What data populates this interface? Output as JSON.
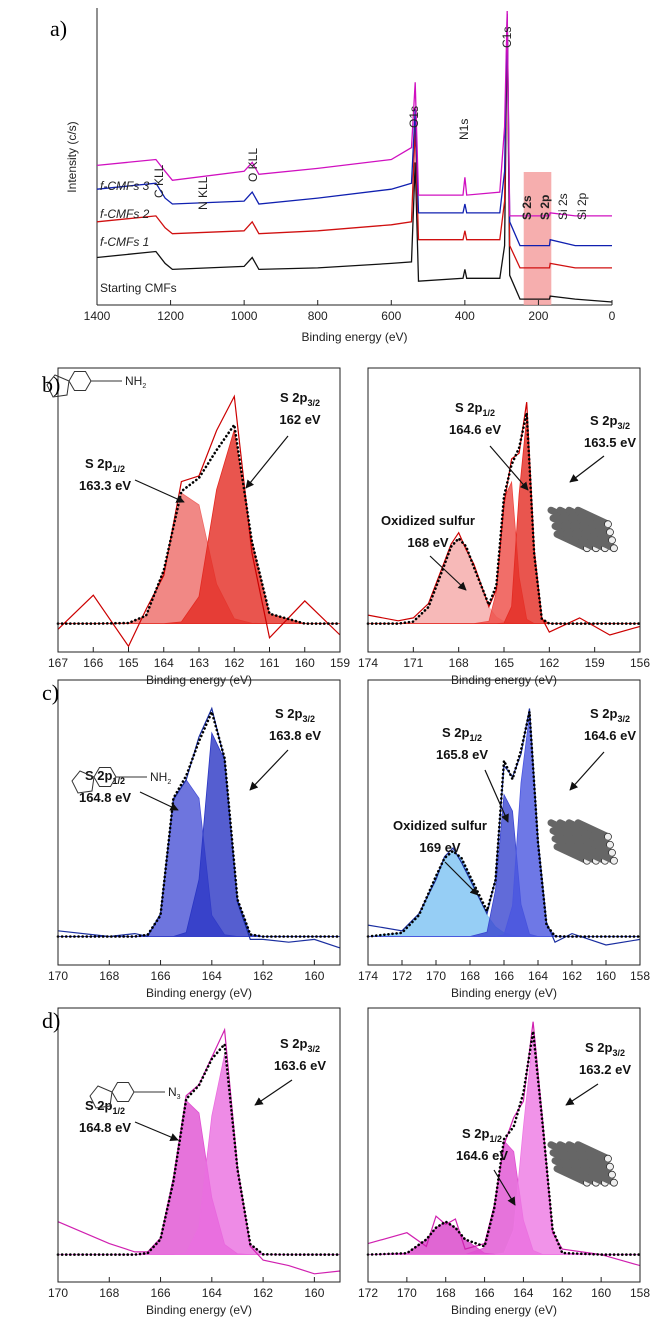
{
  "chart_data": [
    {
      "type": "survey",
      "panel_label": "a)",
      "x_label": "Binding energy (eV)",
      "y_label": "Intensity (c/s)",
      "xlim": [
        1400,
        0
      ],
      "xticks": [
        1400,
        1200,
        1000,
        800,
        600,
        400,
        200,
        0
      ],
      "ylim": [
        0,
        100
      ],
      "highlight_range": [
        240,
        165
      ],
      "highlight_color": "#f4a0a0",
      "x": [
        1400,
        1240,
        1215,
        1195,
        1000,
        978,
        960,
        800,
        600,
        545,
        535,
        526,
        405,
        400,
        395,
        305,
        292,
        285,
        278,
        250,
        170,
        168,
        100,
        0
      ],
      "series": [
        {
          "name": "Starting CMFs",
          "color": "#111111",
          "values": [
            16,
            18,
            14,
            12,
            13,
            16,
            12,
            12.5,
            14,
            14.5,
            48,
            8,
            9,
            12,
            9,
            9,
            20,
            96,
            10,
            2,
            2,
            3,
            2,
            1
          ]
        },
        {
          "name": "f-CMFs 1",
          "color": "#d01010",
          "values": [
            28,
            30,
            26,
            24,
            25,
            28,
            24,
            25,
            27,
            28,
            60,
            22,
            22,
            25,
            22,
            22,
            35,
            97,
            20,
            12.5,
            12.5,
            14,
            12.5,
            12.5
          ]
        },
        {
          "name": "f-CMFs 2",
          "color": "#1020b0",
          "values": [
            39,
            41,
            36,
            34,
            35,
            38,
            34,
            36,
            39,
            41,
            66,
            31,
            31,
            34,
            31,
            31,
            45,
            98,
            28,
            20,
            20,
            22,
            20,
            20
          ]
        },
        {
          "name": "f-CMFs 3",
          "color": "#d010c0",
          "values": [
            47,
            49,
            45,
            42,
            45,
            48,
            44,
            46,
            49,
            53,
            75,
            37,
            37,
            43,
            37,
            38,
            60,
            99,
            30,
            30,
            30,
            31,
            30,
            30
          ]
        }
      ],
      "peak_labels": [
        {
          "text": "C KLL",
          "color": "#111111"
        },
        {
          "text": "N KLL",
          "color": "#111111"
        },
        {
          "text": "O KLL",
          "color": "#111111"
        },
        {
          "text": "O1s",
          "color": "#111111"
        },
        {
          "text": "N1s",
          "color": "#111111"
        },
        {
          "text": "C1s",
          "color": "#111111"
        },
        {
          "text": "S 2s",
          "color": "#d01010"
        },
        {
          "text": "S 2p",
          "color": "#d01010"
        },
        {
          "text": "Si 2s",
          "color": "#111111"
        },
        {
          "text": "Si 2p",
          "color": "#111111"
        }
      ]
    },
    {
      "type": "xps",
      "panel_label": "b)",
      "x_label": "Binding energy (eV)",
      "xlim": [
        167,
        159
      ],
      "xticks": [
        167,
        166,
        165,
        164,
        163,
        162,
        161,
        160,
        159
      ],
      "ylim": [
        0,
        100
      ],
      "structure_text": {
        "text": "NH",
        "sub": "2"
      },
      "x": [
        167,
        166,
        165,
        164.5,
        164,
        163.5,
        163,
        162.5,
        162,
        161.5,
        161,
        160,
        159
      ],
      "series": [
        {
          "style": "area",
          "color": "#ee6a66",
          "values": [
            10,
            10,
            10.2,
            12.8,
            28.8,
            56,
            51.8,
            23.9,
            11.7,
            10.1,
            10,
            10,
            10
          ]
        },
        {
          "style": "area",
          "color": "#e42a22",
          "values": [
            10,
            10,
            10,
            10,
            10,
            10.6,
            19.5,
            57.2,
            78.3,
            38.8,
            13.5,
            10,
            10
          ]
        },
        {
          "style": "line",
          "color": "#cc0000",
          "values": [
            8,
            20,
            2,
            15,
            27,
            60,
            62,
            78,
            90,
            35,
            5,
            18,
            6
          ]
        },
        {
          "style": "dotted",
          "color": "#000000",
          "values": [
            10,
            10,
            10.2,
            12.8,
            28.8,
            56.6,
            61.3,
            71.1,
            80,
            38.9,
            13.5,
            10,
            10
          ]
        }
      ],
      "annotations": [
        {
          "text": "S 2p",
          "sub": "3/2",
          "energy": "162 eV"
        },
        {
          "text": "S 2p",
          "sub": "1/2",
          "energy": "163.3 eV"
        }
      ]
    },
    {
      "type": "xps",
      "x_label": "Binding energy (eV)",
      "xlim": [
        174,
        156
      ],
      "xticks": [
        174,
        171,
        168,
        165,
        162,
        159,
        156
      ],
      "ylim": [
        0,
        100
      ],
      "x": [
        174,
        172,
        171,
        170,
        169,
        168.5,
        168,
        167.5,
        167,
        166,
        165.5,
        165,
        164.5,
        164,
        163.5,
        163,
        162.5,
        162,
        160,
        158,
        156
      ],
      "series": [
        {
          "style": "area",
          "color": "#f5a8a6",
          "values": [
            10,
            10,
            10.7,
            15.8,
            29.9,
            37.1,
            40,
            37.1,
            29.9,
            15.8,
            12.3,
            10.7,
            10.2,
            10,
            10,
            10,
            10,
            10,
            10,
            10,
            10
          ]
        },
        {
          "style": "area",
          "color": "#ee4a44",
          "values": [
            10,
            10,
            10,
            10,
            10,
            10,
            10,
            10,
            10,
            10.8,
            21.3,
            54,
            59.8,
            26.4,
            11.5,
            10,
            10,
            10,
            10,
            10,
            10
          ]
        },
        {
          "style": "area",
          "color": "#e42a22",
          "values": [
            10,
            10,
            10,
            10,
            10,
            10,
            10,
            10,
            10,
            10,
            10,
            10.2,
            16,
            55.5,
            82.7,
            34.4,
            11.7,
            10,
            10,
            10,
            10
          ]
        },
        {
          "style": "line",
          "color": "#cc0000",
          "values": [
            13,
            11,
            12,
            17,
            31,
            38,
            42,
            36,
            31,
            16,
            22,
            52,
            68,
            70,
            88,
            36,
            12,
            7,
            12,
            6,
            9
          ]
        },
        {
          "style": "dotted",
          "color": "#000000",
          "values": [
            10,
            10,
            10.7,
            15.8,
            29.9,
            37.1,
            40,
            37.1,
            29.9,
            16.6,
            23.6,
            54.9,
            66,
            71.9,
            84.2,
            34.4,
            11.7,
            10,
            10,
            10,
            10
          ]
        }
      ],
      "annotations": [
        {
          "text": "S 2p",
          "sub": "1/2",
          "energy": "164.6 eV"
        },
        {
          "text": "S 2p",
          "sub": "3/2",
          "energy": "163.5 eV"
        },
        {
          "text": "Oxidized sulfur",
          "energy": "168 eV"
        }
      ]
    },
    {
      "type": "xps",
      "panel_label": "c)",
      "x_label": "Binding energy (eV)",
      "xlim": [
        170,
        159
      ],
      "xticks": [
        170,
        168,
        166,
        164,
        162,
        160
      ],
      "ylim": [
        0,
        100
      ],
      "structure_text": {
        "text": "NH",
        "sub": "2"
      },
      "x": [
        170,
        168,
        167,
        166.5,
        166,
        165.5,
        165,
        164.5,
        164,
        163.5,
        163,
        162.5,
        162,
        161,
        160,
        159
      ],
      "series": [
        {
          "style": "area",
          "color": "#4a52d6",
          "values": [
            10,
            10,
            10,
            10.6,
            17.4,
            58.5,
            65,
            58.5,
            17.4,
            10.6,
            10,
            10,
            10,
            10,
            10,
            10
          ]
        },
        {
          "style": "area",
          "color": "#2a36c4",
          "values": [
            10,
            10,
            10,
            10,
            10,
            10,
            11.4,
            30,
            81.4,
            72,
            23,
            10.7,
            10,
            10,
            10,
            10
          ]
        },
        {
          "style": "line",
          "color": "#1a2ea0",
          "values": [
            12,
            10,
            11,
            10,
            18,
            58,
            65,
            80,
            90,
            72,
            22,
            9,
            9,
            8,
            9,
            6
          ]
        },
        {
          "style": "dotted",
          "color": "#000000",
          "values": [
            10,
            10,
            10,
            10.6,
            17.4,
            58.5,
            66.4,
            78.5,
            88.8,
            72.6,
            23,
            10.7,
            10,
            10,
            10,
            10
          ]
        }
      ],
      "annotations": [
        {
          "text": "S 2p",
          "sub": "3/2",
          "energy": "163.8 eV"
        },
        {
          "text": "S 2p",
          "sub": "1/2",
          "energy": "164.8 eV"
        }
      ]
    },
    {
      "type": "xps",
      "x_label": "Binding energy (eV)",
      "xlim": [
        174,
        158
      ],
      "xticks": [
        174,
        172,
        170,
        168,
        166,
        164,
        162,
        160,
        158
      ],
      "ylim": [
        0,
        100
      ],
      "x": [
        174,
        172,
        171,
        170,
        169.5,
        169,
        168.5,
        168,
        167,
        166.5,
        166,
        165.5,
        165,
        164.5,
        164,
        163.5,
        163,
        162,
        160,
        158
      ],
      "series": [
        {
          "style": "area",
          "color": "#7cc2f2",
          "values": [
            10,
            11.3,
            17.5,
            31.2,
            37.5,
            40,
            37.5,
            31.2,
            17.5,
            13.4,
            11.3,
            10.4,
            10.1,
            10,
            10,
            10,
            10,
            10,
            10,
            10
          ]
        },
        {
          "style": "area",
          "color": "#3a46d0",
          "values": [
            10,
            10,
            10,
            10,
            10,
            10,
            10,
            10,
            11.5,
            26.4,
            59.8,
            54,
            21.3,
            10.8,
            10,
            10,
            10,
            10,
            10,
            10
          ]
        },
        {
          "style": "area",
          "color": "#4a56e0",
          "values": [
            10,
            10,
            10,
            10,
            10,
            10,
            10,
            10,
            10,
            10,
            10.6,
            20.8,
            63.9,
            88,
            42.9,
            14,
            10.1,
            10,
            10,
            10
          ]
        },
        {
          "style": "line",
          "color": "#1a2ea0",
          "values": [
            14,
            12,
            18,
            30,
            38,
            41,
            36,
            30,
            18,
            30,
            70,
            66,
            74,
            90,
            44,
            15,
            8,
            11,
            7,
            9
          ]
        },
        {
          "style": "dotted",
          "color": "#000000",
          "values": [
            10,
            11.3,
            17.5,
            31.2,
            37.5,
            40,
            37.5,
            31.2,
            19,
            29.8,
            71.7,
            65.2,
            75.3,
            88.8,
            42.9,
            14,
            10.1,
            10,
            10,
            10
          ]
        }
      ],
      "annotations": [
        {
          "text": "S 2p",
          "sub": "3/2",
          "energy": "164.6 eV"
        },
        {
          "text": "S 2p",
          "sub": "1/2",
          "energy": "165.8 eV"
        },
        {
          "text": "Oxidized sulfur",
          "energy": "169 eV"
        }
      ]
    },
    {
      "type": "xps",
      "panel_label": "d)",
      "x_label": "Binding energy (eV)",
      "xlim": [
        170,
        159
      ],
      "xticks": [
        170,
        168,
        166,
        164,
        162,
        160
      ],
      "ylim": [
        0,
        100
      ],
      "structure_text": {
        "text": "N",
        "sub": "3"
      },
      "x": [
        170,
        168,
        167,
        166.5,
        166,
        165.5,
        165,
        164.5,
        164,
        163.5,
        163,
        162.5,
        162,
        161,
        160,
        159
      ],
      "series": [
        {
          "style": "area",
          "color": "#e050d2",
          "values": [
            10,
            10,
            10,
            10.5,
            15.6,
            36.7,
            66.2,
            61.7,
            30.8,
            13.7,
            10.3,
            10,
            10,
            10,
            10,
            10
          ]
        },
        {
          "style": "area",
          "color": "#ea6ee0",
          "values": [
            10,
            10,
            10,
            10,
            10,
            10,
            10.6,
            20.1,
            60.6,
            83.1,
            40.8,
            13.8,
            10.1,
            10,
            10,
            10
          ]
        },
        {
          "style": "line",
          "color": "#d020b0",
          "values": [
            22,
            14,
            11,
            11,
            16,
            38,
            68,
            72,
            82,
            92,
            42,
            13,
            8,
            6,
            3,
            4
          ]
        },
        {
          "style": "dotted",
          "color": "#000000",
          "values": [
            10,
            10,
            10,
            10.5,
            15.6,
            36.7,
            66.8,
            71.8,
            81.4,
            86.8,
            41.1,
            13.8,
            10.1,
            10,
            10,
            10
          ]
        }
      ],
      "annotations": [
        {
          "text": "S 2p",
          "sub": "3/2",
          "energy": "163.6 eV"
        },
        {
          "text": "S 2p",
          "sub": "1/2",
          "energy": "164.8 eV"
        }
      ]
    },
    {
      "type": "xps",
      "x_label": "Binding energy (eV)",
      "xlim": [
        172,
        158
      ],
      "xticks": [
        172,
        170,
        168,
        166,
        164,
        162,
        160,
        158
      ],
      "ylim": [
        0,
        100
      ],
      "x": [
        172,
        170,
        169,
        168.5,
        168,
        167.5,
        167,
        166,
        165.5,
        165,
        164.5,
        164,
        163.5,
        163,
        162.5,
        162,
        160,
        158
      ],
      "series": [
        {
          "style": "area",
          "color": "#d840c8",
          "values": [
            10,
            10.5,
            15.5,
            19.8,
            22,
            19.8,
            15.5,
            10.5,
            10.1,
            10,
            10,
            10,
            10,
            10,
            10,
            10,
            10,
            10
          ]
        },
        {
          "style": "area",
          "color": "#e050d2",
          "values": [
            10,
            10,
            10,
            10,
            10,
            10,
            10,
            12.5,
            26.9,
            51.5,
            47.6,
            22.5,
            11.5,
            10,
            10,
            10,
            10,
            10
          ]
        },
        {
          "style": "area",
          "color": "#ee78e4",
          "values": [
            10,
            10,
            10,
            10,
            10,
            10,
            10,
            10,
            10,
            10.6,
            19.1,
            56.5,
            90,
            56.5,
            19.1,
            10.6,
            10,
            10
          ]
        },
        {
          "style": "line",
          "color": "#d020b0",
          "values": [
            14,
            18,
            13,
            24,
            21,
            23,
            12,
            14,
            28,
            50,
            60,
            66,
            95,
            58,
            18,
            12,
            10,
            6
          ]
        },
        {
          "style": "dotted",
          "color": "#000000",
          "values": [
            10,
            10.5,
            15.5,
            19.8,
            22,
            19.8,
            15.5,
            13,
            27,
            52.1,
            56.7,
            69,
            91.5,
            56.5,
            19.1,
            10.6,
            10,
            10
          ]
        }
      ],
      "annotations": [
        {
          "text": "S 2p",
          "sub": "3/2",
          "energy": "163.2 eV"
        },
        {
          "text": "S 2p",
          "sub": "1/2",
          "energy": "164.6 eV"
        }
      ]
    }
  ]
}
